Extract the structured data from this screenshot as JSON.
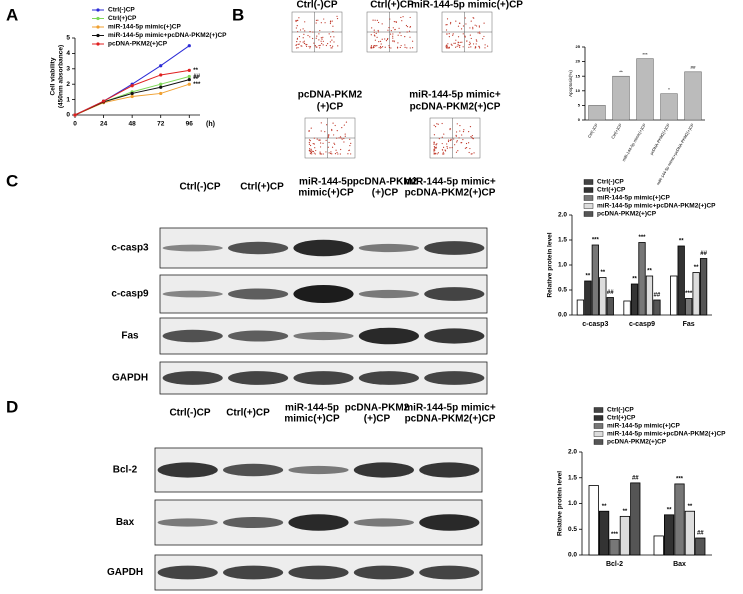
{
  "panel_labels": [
    "A",
    "B",
    "C",
    "D"
  ],
  "chart_data": [
    {
      "type": "line",
      "ylabel": [
        "Cell viability",
        "(450nm absorbance)"
      ],
      "xlabel": "(h)",
      "x": [
        0,
        24,
        48,
        72,
        96
      ],
      "xlim": [
        0,
        105
      ],
      "xticks": [
        0,
        24,
        48,
        72,
        96
      ],
      "ylim": [
        0,
        5
      ],
      "yticks": [
        0,
        1,
        2,
        3,
        4,
        5
      ],
      "series": [
        {
          "name": "Ctrl(-)CP",
          "color": "#2b2bd6",
          "values": [
            0,
            0.9,
            2.0,
            3.2,
            4.5
          ]
        },
        {
          "name": "Ctrl(+)CP",
          "color": "#7ed957",
          "values": [
            0,
            0.85,
            1.5,
            2.0,
            2.5
          ],
          "end_label": "##"
        },
        {
          "name": "miR-144-5p mimic(+)CP",
          "color": "#f0a030",
          "values": [
            0,
            0.8,
            1.2,
            1.4,
            2.0
          ],
          "end_label": "***"
        },
        {
          "name": "miR-144-5p mimic+pcDNA-PKM2(+)CP",
          "color": "#111111",
          "values": [
            0,
            0.85,
            1.4,
            1.8,
            2.3
          ],
          "end_label": "**"
        },
        {
          "name": "pcDNA-PKM2(+)CP",
          "color": "#e02020",
          "values": [
            0,
            0.9,
            1.9,
            2.6,
            2.9
          ],
          "end_label": "**"
        }
      ]
    },
    {
      "type": "bar",
      "ylabel": "Apoptosis(%)",
      "color": "#bbbbbb",
      "categories": [
        "Ctrl(-)CP",
        "Ctrl(+)CP",
        "miR-144-5p mimic(+)CP",
        "pcDNA-PKM2(+)CP",
        "miR-144-5p mimic+pcDNA-PKM2(+)CP"
      ],
      "values": [
        5,
        15,
        21,
        9,
        16.5
      ],
      "annotations": [
        null,
        "**",
        "***",
        "*",
        "##"
      ],
      "ylim": [
        0,
        25
      ],
      "yticks": [
        0,
        5,
        10,
        15,
        20,
        25
      ]
    },
    {
      "type": "grouped_bar",
      "ylabel": "Relative protein level",
      "categories": [
        "c-casp3",
        "c-casp9",
        "Fas"
      ],
      "ylim": [
        0,
        2
      ],
      "yticks": [
        {
          "value": 0,
          "label": "0.0"
        },
        {
          "value": 0.5,
          "label": "0.5"
        },
        {
          "value": 1,
          "label": "1.0"
        },
        {
          "value": 1.5,
          "label": "1.5"
        },
        {
          "value": 2,
          "label": "2.0"
        }
      ],
      "series": [
        {
          "name": "Ctrl(-)CP",
          "color": "#ffffff",
          "values": [
            0.3,
            0.28,
            0.78
          ]
        },
        {
          "name": "Ctrl(+)CP",
          "color": "#333333",
          "values": [
            0.68,
            0.62,
            1.38
          ],
          "annotations": [
            "**",
            "**",
            "**"
          ]
        },
        {
          "name": "miR-144-5p mimic(+)CP",
          "color": "#777777",
          "values": [
            1.4,
            1.45,
            0.33
          ],
          "annotations": [
            "***",
            "***",
            "***"
          ]
        },
        {
          "name": "miR-144-5p mimic+pcDNA-PKM2(+)CP",
          "color": "#dddddd",
          "values": [
            0.75,
            0.78,
            0.85
          ],
          "annotations": [
            "**",
            "**",
            "**"
          ]
        },
        {
          "name": "pcDNA-PKM2(+)CP",
          "color": "#555555",
          "values": [
            0.35,
            0.3,
            1.13
          ],
          "annotations": [
            "##",
            "##",
            "##"
          ]
        }
      ]
    },
    {
      "type": "grouped_bar",
      "ylabel": "Relative protein level",
      "categories": [
        "Bcl-2",
        "Bax"
      ],
      "ylim": [
        0,
        2
      ],
      "yticks": [
        {
          "value": 0,
          "label": "0.0"
        },
        {
          "value": 0.5,
          "label": "0.5"
        },
        {
          "value": 1,
          "label": "1.0"
        },
        {
          "value": 1.5,
          "label": "1.5"
        },
        {
          "value": 2,
          "label": "2.0"
        }
      ],
      "series": [
        {
          "name": "Ctrl(-)CP",
          "color": "#ffffff",
          "values": [
            1.35,
            0.37
          ]
        },
        {
          "name": "Ctrl(+)CP",
          "color": "#333333",
          "values": [
            0.85,
            0.78
          ],
          "annotations": [
            "**",
            "**"
          ]
        },
        {
          "name": "miR-144-5p mimic(+)CP",
          "color": "#777777",
          "values": [
            0.3,
            1.38
          ],
          "annotations": [
            "***",
            "***"
          ]
        },
        {
          "name": "miR-144-5p mimic+pcDNA-PKM2(+)CP",
          "color": "#dddddd",
          "values": [
            0.75,
            0.85
          ],
          "annotations": [
            "**",
            "**"
          ]
        },
        {
          "name": "pcDNA-PKM2(+)CP",
          "color": "#555555",
          "values": [
            1.4,
            0.33
          ],
          "annotations": [
            "##",
            "##"
          ]
        }
      ]
    }
  ],
  "flow": {
    "labels": [
      [
        "Ctrl(-)CP"
      ],
      [
        "Ctrl(+)CP"
      ],
      [
        "miR-144-5p mimic(+)CP"
      ],
      [
        "pcDNA-PKM2",
        "(+)CP"
      ],
      [
        "miR-144-5p mimic+",
        "pcDNA-PKM2(+)CP"
      ]
    ]
  },
  "blot_c": {
    "columns": [
      [
        "Ctrl(-)CP"
      ],
      [
        "Ctrl(+)CP"
      ],
      [
        "miR-144-5p",
        "mimic(+)CP"
      ],
      [
        "pcDNA-PKM2",
        "(+)CP"
      ],
      [
        "miR-144-5p mimic+",
        "pcDNA-PKM2(+)CP"
      ]
    ],
    "rows": [
      "c-casp3",
      "c-casp9",
      "Fas",
      "GAPDH"
    ]
  },
  "blot_d": {
    "columns": [
      [
        "Ctrl(-)CP"
      ],
      [
        "Ctrl(+)CP"
      ],
      [
        "miR-144-5p",
        "mimic(+)CP"
      ],
      [
        "pcDNA-PKM2",
        "(+)CP"
      ],
      [
        "miR-144-5p mimic+",
        "pcDNA-PKM2(+)CP"
      ]
    ],
    "rows": [
      "Bcl-2",
      "Bax",
      "GAPDH"
    ]
  }
}
